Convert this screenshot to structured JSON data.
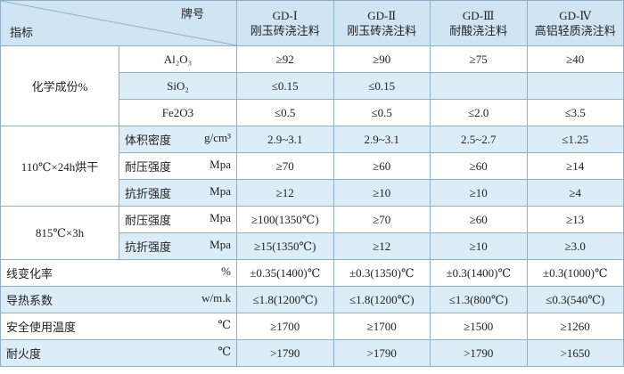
{
  "header": {
    "corner_top": "牌号",
    "corner_bottom": "指标",
    "columns": [
      {
        "code": "GD-Ⅰ",
        "name": "刚玉砖浇注料"
      },
      {
        "code": "GD-Ⅱ",
        "name": "刚玉砖浇注料"
      },
      {
        "code": "GD-Ⅲ",
        "name": "耐酸浇注料"
      },
      {
        "code": "GD-Ⅳ",
        "name": "高铝轻质浇注料"
      }
    ]
  },
  "groups": [
    {
      "label": "化学成份%",
      "rows": [
        {
          "item": "Al₂O₃",
          "values": [
            "≥92",
            "≥90",
            "≥75",
            "≥40"
          ]
        },
        {
          "item": "SiO₂",
          "values": [
            "≤0.15",
            "≤0.15",
            null,
            null
          ]
        },
        {
          "item": "Fe2O3",
          "values": [
            "≤0.5",
            "≤0.5",
            "≤2.0",
            "≤3.5"
          ]
        }
      ]
    },
    {
      "label": "110℃×24h烘干",
      "rows": [
        {
          "item": "体积密度",
          "unit": "g/cm³",
          "values": [
            "2.9~3.1",
            "2.9~3.1",
            "2.5~2.7",
            "≤1.25"
          ]
        },
        {
          "item": "耐压强度",
          "unit": "Mpa",
          "values": [
            "≥70",
            "≥60",
            "≥60",
            "≥14"
          ]
        },
        {
          "item": "抗折强度",
          "unit": "Mpa",
          "values": [
            "≥12",
            "≥10",
            "≥10",
            "≥4"
          ]
        }
      ]
    },
    {
      "label": "815℃×3h",
      "rows": [
        {
          "item": "耐压强度",
          "unit": "Mpa",
          "values": [
            "≥100(1350℃)",
            "≥70",
            "≥60",
            "≥13"
          ]
        },
        {
          "item": "抗折强度",
          "unit": "Mpa",
          "values": [
            "≥15(1350℃)",
            "≥12",
            "≥10",
            "≥3.0"
          ]
        }
      ]
    }
  ],
  "rows": [
    {
      "label": "线变化率",
      "unit": "%",
      "values": [
        "±0.35(1400)℃",
        "±0.3(1350)℃",
        "±0.3(1400)℃",
        "±0.3(1000)℃"
      ]
    },
    {
      "label": "导热系数",
      "unit": "w/m.k",
      "values": [
        "≤1.8(1200℃)",
        "≤1.8(1200℃)",
        "≤1.3(800℃)",
        "≤0.3(540℃)"
      ]
    },
    {
      "label": "安全使用温度",
      "unit": "℃",
      "values": [
        "≥1700",
        "≥1700",
        "≥1500",
        "≥1260"
      ]
    },
    {
      "label": "耐火度",
      "unit": "℃",
      "values": [
        ">1790",
        ">1790",
        ">1790",
        ">1650"
      ]
    }
  ]
}
